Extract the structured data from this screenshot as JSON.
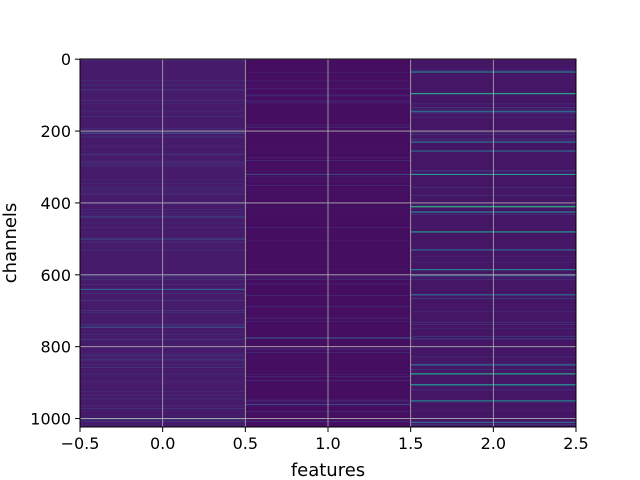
{
  "chart_data": {
    "type": "heatmap",
    "title": "",
    "xlabel": "features",
    "ylabel": "channels",
    "x_ticks": [
      -0.5,
      0.0,
      0.5,
      1.0,
      1.5,
      2.0,
      2.5
    ],
    "x_tick_labels": [
      "−0.5",
      "0.0",
      "0.5",
      "1.0",
      "1.5",
      "2.0",
      "2.5"
    ],
    "y_ticks": [
      0,
      200,
      400,
      600,
      800,
      1000
    ],
    "y_tick_labels": [
      "0",
      "200",
      "400",
      "600",
      "800",
      "1000"
    ],
    "xlim": [
      -0.5,
      2.5
    ],
    "ylim": [
      1023.5,
      -0.5
    ],
    "y_inverted": true,
    "grid": true,
    "n_rows": 1024,
    "n_cols": 3,
    "colormap": "viridis",
    "column_background_level": [
      0.08,
      0.04,
      0.06
    ],
    "bright_stripes": [
      {
        "col": 0,
        "row": 1000,
        "level": 0.3
      },
      {
        "col": 0,
        "row": 205,
        "level": 0.25
      },
      {
        "col": 0,
        "row": 640,
        "level": 0.3
      },
      {
        "col": 0,
        "row": 745,
        "level": 0.25
      },
      {
        "col": 1,
        "row": 320,
        "level": 0.2
      },
      {
        "col": 1,
        "row": 775,
        "level": 0.25
      },
      {
        "col": 1,
        "row": 960,
        "level": 0.2
      },
      {
        "col": 2,
        "row": 35,
        "level": 0.45
      },
      {
        "col": 2,
        "row": 95,
        "level": 0.6
      },
      {
        "col": 2,
        "row": 145,
        "level": 0.35
      },
      {
        "col": 2,
        "row": 230,
        "level": 0.4
      },
      {
        "col": 2,
        "row": 255,
        "level": 0.35
      },
      {
        "col": 2,
        "row": 320,
        "level": 0.55
      },
      {
        "col": 2,
        "row": 410,
        "level": 0.65
      },
      {
        "col": 2,
        "row": 425,
        "level": 0.4
      },
      {
        "col": 2,
        "row": 480,
        "level": 0.55
      },
      {
        "col": 2,
        "row": 530,
        "level": 0.35
      },
      {
        "col": 2,
        "row": 585,
        "level": 0.45
      },
      {
        "col": 2,
        "row": 600,
        "level": 0.4
      },
      {
        "col": 2,
        "row": 655,
        "level": 0.35
      },
      {
        "col": 2,
        "row": 850,
        "level": 0.4
      },
      {
        "col": 2,
        "row": 875,
        "level": 0.6
      },
      {
        "col": 2,
        "row": 905,
        "level": 0.5
      },
      {
        "col": 2,
        "row": 950,
        "level": 0.45
      },
      {
        "col": 2,
        "row": 1010,
        "level": 0.35
      }
    ]
  }
}
